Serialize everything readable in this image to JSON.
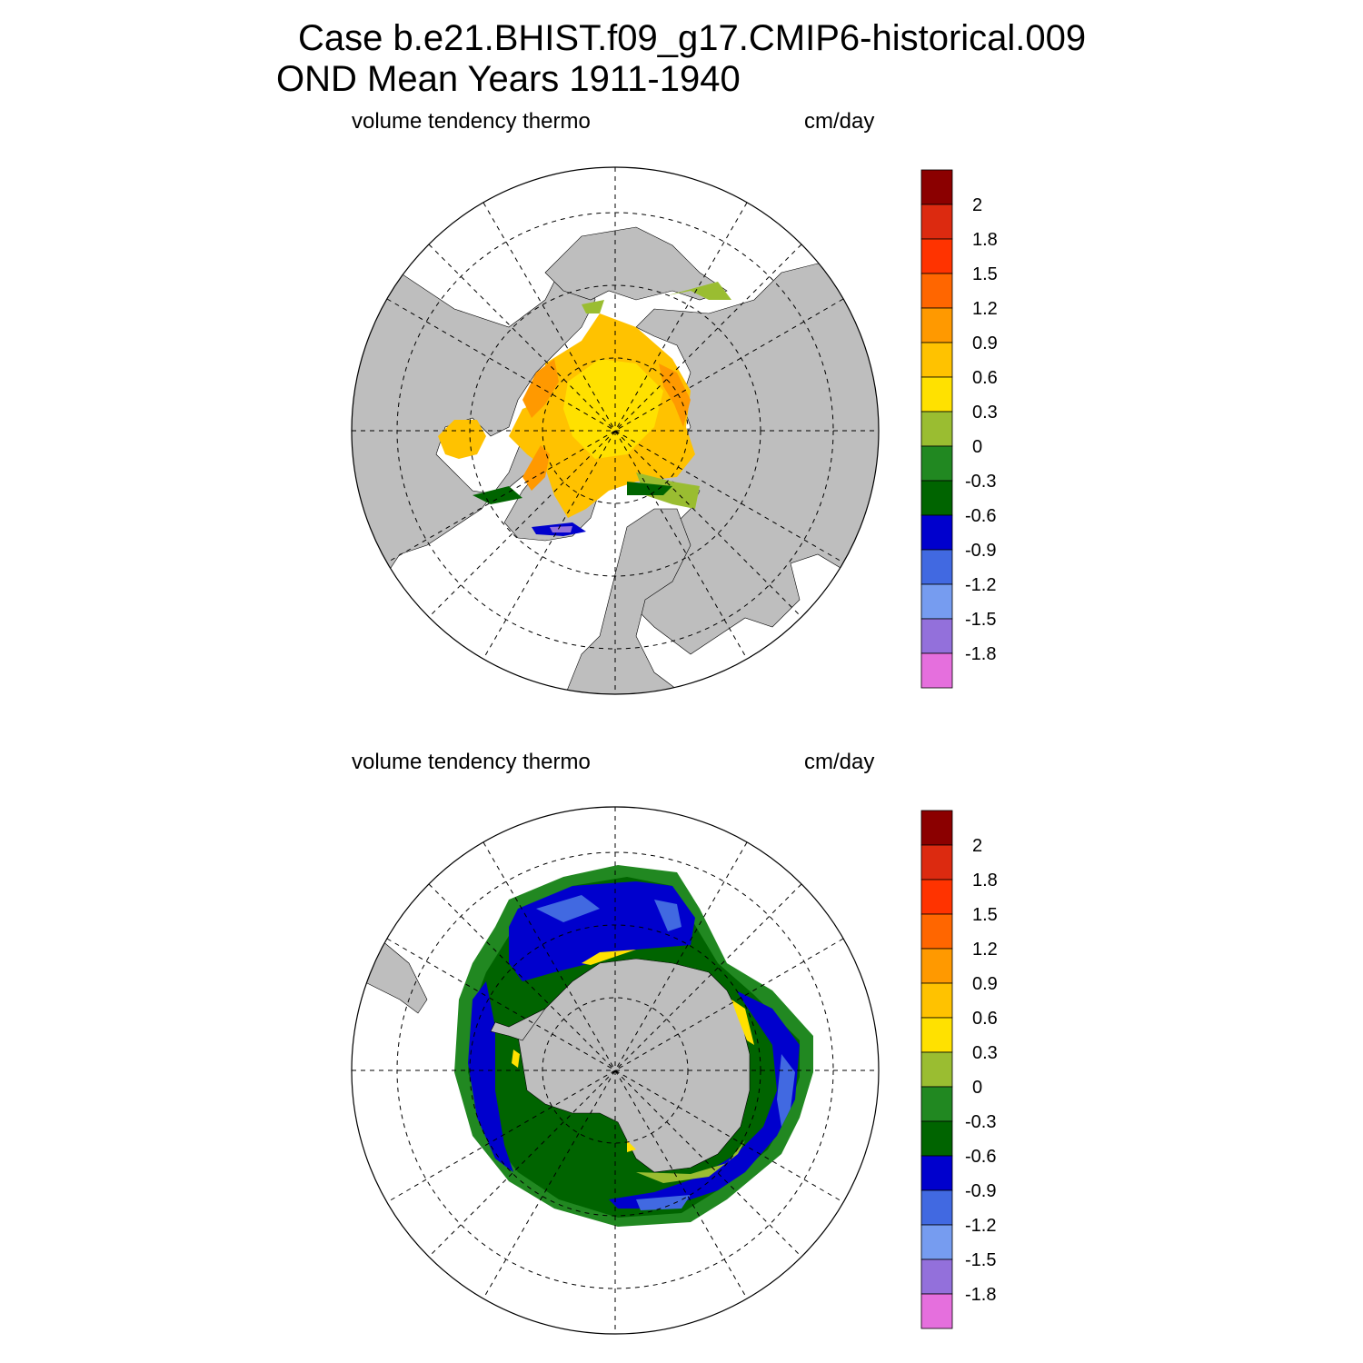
{
  "title": {
    "line1": "Case b.e21.BHIST.f09_g17.CMIP6-historical.009",
    "line2": "OND Mean   Years 1911-1940"
  },
  "panels": [
    {
      "id": "north",
      "left_label": "volume tendency thermo",
      "right_label": "cm/day"
    },
    {
      "id": "south",
      "left_label": "volume tendency thermo",
      "right_label": "cm/day"
    }
  ],
  "colorbar": {
    "labels": [
      "2",
      "1.8",
      "1.5",
      "1.2",
      "0.9",
      "0.6",
      "0.3",
      "0",
      "-0.3",
      "-0.6",
      "-0.9",
      "-1.2",
      "-1.5",
      "-1.8"
    ],
    "colors": [
      "#8b0000",
      "#dc2a10",
      "#ff3300",
      "#ff6600",
      "#ff9900",
      "#ffc200",
      "#ffe100",
      "#9abd31",
      "#218821",
      "#006400",
      "#0000cd",
      "#4169e1",
      "#769cf0",
      "#9370db",
      "#e56fdd"
    ]
  },
  "map_style": {
    "land": "#bebebe",
    "ocean": "#ffffff",
    "grid_line": "#000000",
    "outline": "#000000"
  }
}
